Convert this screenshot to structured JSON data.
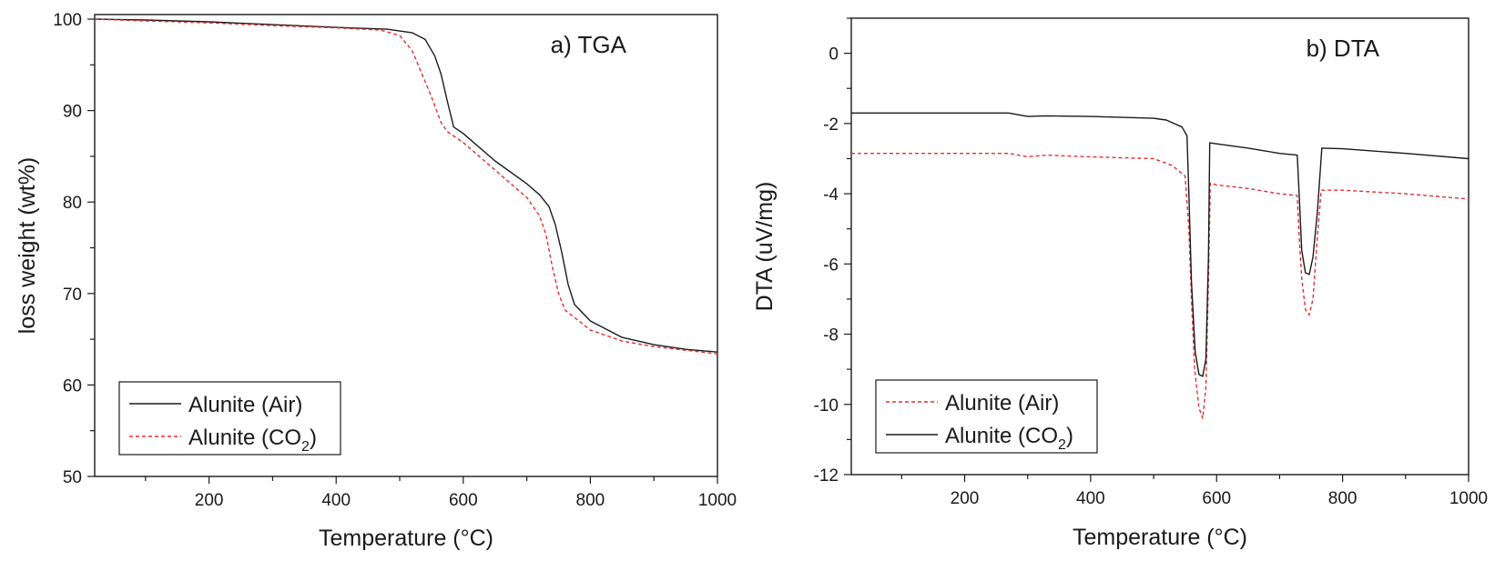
{
  "chart_data": [
    {
      "type": "line",
      "title": "a) TGA",
      "xlabel": "Temperature (°C)",
      "ylabel": "loss weight (wt%)",
      "xlim": [
        20,
        1000
      ],
      "ylim": [
        50,
        100.5
      ],
      "x_ticks": [
        200,
        400,
        600,
        800,
        1000
      ],
      "y_ticks": [
        50,
        60,
        70,
        80,
        90,
        100
      ],
      "grid": false,
      "legend_position": "bottom-left",
      "series": [
        {
          "name": "Alunite (Air)",
          "name_sub": "",
          "name_suffix": "",
          "color": "#1a1a1a",
          "dash": "solid",
          "points": [
            [
              20,
              100
            ],
            [
              100,
              99.9
            ],
            [
              200,
              99.7
            ],
            [
              300,
              99.4
            ],
            [
              400,
              99.1
            ],
            [
              480,
              98.9
            ],
            [
              520,
              98.5
            ],
            [
              540,
              97.8
            ],
            [
              555,
              96
            ],
            [
              565,
              94
            ],
            [
              575,
              91
            ],
            [
              585,
              88.2
            ],
            [
              600,
              87.5
            ],
            [
              650,
              84.5
            ],
            [
              700,
              82
            ],
            [
              720,
              80.8
            ],
            [
              735,
              79.5
            ],
            [
              745,
              77.5
            ],
            [
              755,
              74.5
            ],
            [
              765,
              71
            ],
            [
              775,
              68.8
            ],
            [
              800,
              67
            ],
            [
              850,
              65.2
            ],
            [
              900,
              64.4
            ],
            [
              950,
              63.9
            ],
            [
              1000,
              63.6
            ]
          ]
        },
        {
          "name": "Alunite (CO",
          "name_sub": "2",
          "name_suffix": ")",
          "color": "#e03030",
          "dash": "dashed",
          "points": [
            [
              20,
              100
            ],
            [
              100,
              99.8
            ],
            [
              200,
              99.6
            ],
            [
              300,
              99.3
            ],
            [
              400,
              99.05
            ],
            [
              470,
              98.8
            ],
            [
              500,
              98.2
            ],
            [
              520,
              96.5
            ],
            [
              535,
              94
            ],
            [
              550,
              91.5
            ],
            [
              565,
              88.7
            ],
            [
              575,
              87.7
            ],
            [
              600,
              86.5
            ],
            [
              650,
              83.5
            ],
            [
              700,
              80.5
            ],
            [
              720,
              78.5
            ],
            [
              730,
              76.5
            ],
            [
              740,
              73
            ],
            [
              750,
              70
            ],
            [
              760,
              68.2
            ],
            [
              800,
              66
            ],
            [
              850,
              64.8
            ],
            [
              900,
              64.2
            ],
            [
              950,
              63.8
            ],
            [
              1000,
              63.4
            ]
          ]
        }
      ]
    },
    {
      "type": "line",
      "title": "b) DTA",
      "xlabel": "Temperature (°C)",
      "ylabel": "DTA (uV/mg)",
      "xlim": [
        20,
        1000
      ],
      "ylim": [
        -12,
        1
      ],
      "x_ticks": [
        200,
        400,
        600,
        800,
        1000
      ],
      "y_ticks": [
        -12,
        -10,
        -8,
        -6,
        -4,
        -2,
        0
      ],
      "grid": false,
      "legend_position": "bottom-left",
      "series": [
        {
          "name": "Alunite (Air)",
          "name_sub": "",
          "name_suffix": "",
          "color": "#e03030",
          "dash": "dashed",
          "points": [
            [
              20,
              -2.85
            ],
            [
              270,
              -2.85
            ],
            [
              300,
              -2.95
            ],
            [
              330,
              -2.9
            ],
            [
              400,
              -2.95
            ],
            [
              500,
              -3.0
            ],
            [
              530,
              -3.2
            ],
            [
              550,
              -3.5
            ],
            [
              556,
              -5
            ],
            [
              560,
              -7
            ],
            [
              565,
              -9
            ],
            [
              572,
              -10.1
            ],
            [
              578,
              -10.4
            ],
            [
              583,
              -9.5
            ],
            [
              587,
              -6.5
            ],
            [
              590,
              -3.7
            ],
            [
              600,
              -3.75
            ],
            [
              650,
              -3.85
            ],
            [
              700,
              -4.0
            ],
            [
              728,
              -4.05
            ],
            [
              731,
              -5.2
            ],
            [
              735,
              -6.4
            ],
            [
              741,
              -7.3
            ],
            [
              747,
              -7.45
            ],
            [
              753,
              -7.0
            ],
            [
              760,
              -5.2
            ],
            [
              766,
              -3.9
            ],
            [
              800,
              -3.9
            ],
            [
              900,
              -4.0
            ],
            [
              1000,
              -4.15
            ]
          ]
        },
        {
          "name": "Alunite (CO",
          "name_sub": "2",
          "name_suffix": ")",
          "color": "#1a1a1a",
          "dash": "solid",
          "points": [
            [
              20,
              -1.7
            ],
            [
              270,
              -1.7
            ],
            [
              300,
              -1.8
            ],
            [
              330,
              -1.78
            ],
            [
              400,
              -1.8
            ],
            [
              500,
              -1.85
            ],
            [
              520,
              -1.9
            ],
            [
              545,
              -2.1
            ],
            [
              553,
              -2.35
            ],
            [
              556,
              -4
            ],
            [
              560,
              -6.5
            ],
            [
              566,
              -8.5
            ],
            [
              572,
              -9.15
            ],
            [
              578,
              -9.2
            ],
            [
              583,
              -8.7
            ],
            [
              587,
              -5.8
            ],
            [
              589,
              -2.55
            ],
            [
              600,
              -2.58
            ],
            [
              650,
              -2.7
            ],
            [
              700,
              -2.85
            ],
            [
              728,
              -2.9
            ],
            [
              731,
              -4
            ],
            [
              735,
              -5.6
            ],
            [
              741,
              -6.25
            ],
            [
              747,
              -6.3
            ],
            [
              753,
              -5.8
            ],
            [
              760,
              -4.5
            ],
            [
              767,
              -2.7
            ],
            [
              800,
              -2.72
            ],
            [
              900,
              -2.85
            ],
            [
              1000,
              -3.0
            ]
          ]
        }
      ]
    }
  ]
}
